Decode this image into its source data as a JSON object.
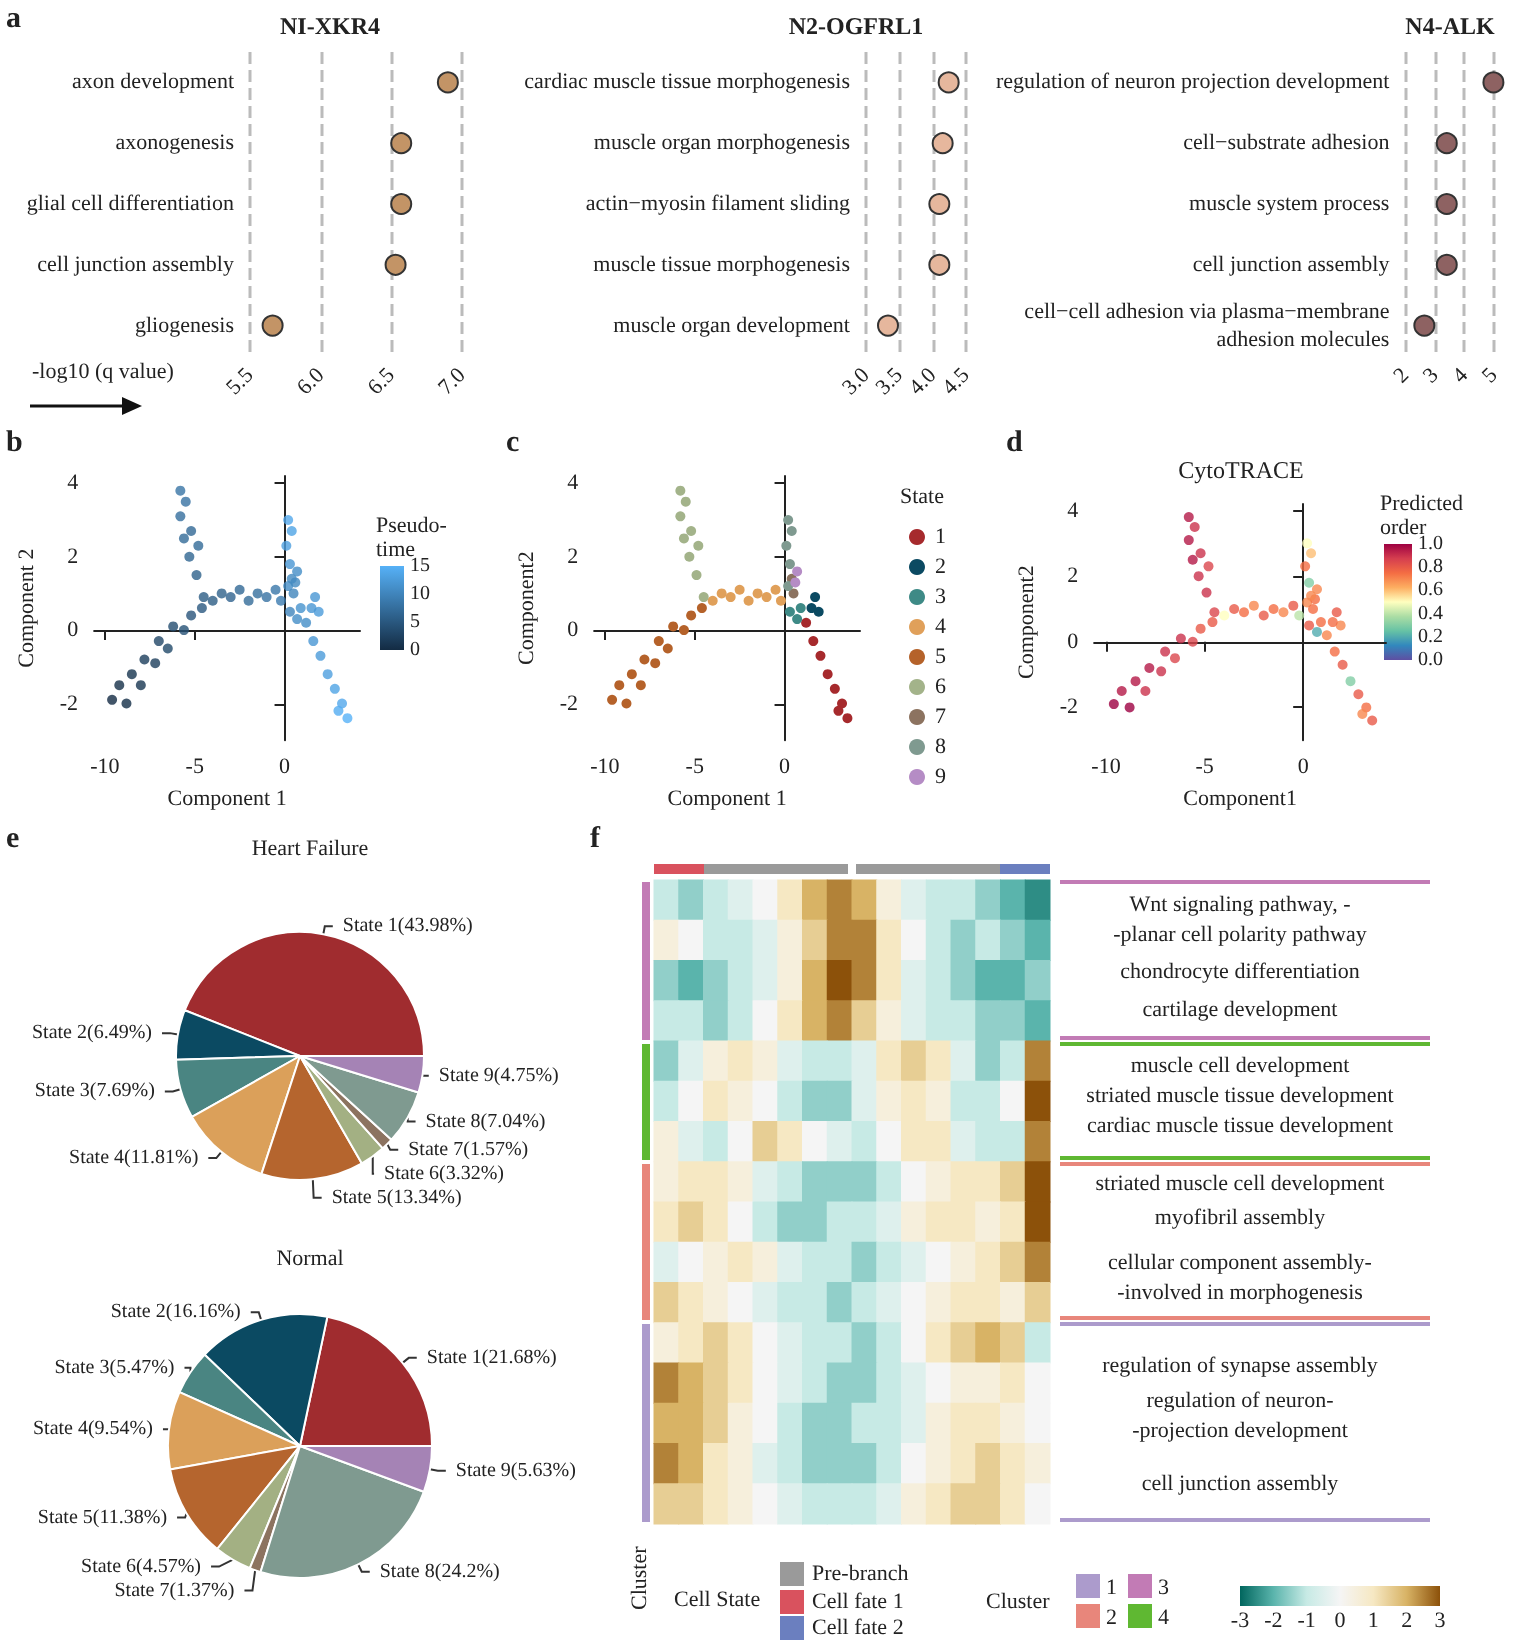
{
  "chart_data": [
    {
      "type": "scatter",
      "orientation": "horizontal",
      "title": "NI-XKR4",
      "xlabel": "-log10 (q value)",
      "annotations": [
        "a"
      ],
      "categories": [
        "axon development",
        "axonogenesis",
        "glial cell differentiation",
        "cell junction assembly",
        "gliogenesis"
      ],
      "values": [
        6.9,
        6.57,
        6.57,
        6.53,
        5.66
      ],
      "color": "#c39466",
      "xlim": [
        5.5,
        7
      ],
      "xticks": [
        {
          "value": 5.5,
          "label": "5.5"
        },
        {
          "value": 6,
          "label": "6.0"
        },
        {
          "value": 6.5,
          "label": "6.5"
        },
        {
          "value": 7,
          "label": "7.0"
        }
      ],
      "grid": "x",
      "marker": "circle"
    },
    {
      "type": "scatter",
      "orientation": "horizontal",
      "title": "N2-OGFRL1",
      "categories": [
        "cardiac muscle tissue morphogenesis",
        "muscle organ morphogenesis",
        "actin−myosin filament sliding",
        "muscle tissue morphogenesis",
        "muscle organ development"
      ],
      "values": [
        4.24,
        4.15,
        4.1,
        4.1,
        3.33
      ],
      "color": "#e6b79d",
      "xlim": [
        3,
        4.5
      ],
      "xticks": [
        {
          "value": 3,
          "label": "3.0"
        },
        {
          "value": 3.5,
          "label": "3.5"
        },
        {
          "value": 4,
          "label": "4.0"
        },
        {
          "value": 4.5,
          "label": "4.5"
        }
      ],
      "grid": "x",
      "marker": "circle"
    },
    {
      "type": "scatter",
      "orientation": "horizontal",
      "title": "N4-ALK",
      "categories": [
        "regulation of neuron projection development",
        "cell−substrate adhesion",
        "muscle system process",
        "cell junction assembly",
        "cell−cell adhesion via plasma−membrane\nadhesion molecules"
      ],
      "values": [
        4.98,
        3.4,
        3.4,
        3.4,
        2.64
      ],
      "color": "#8e6262",
      "xlim": [
        2,
        5
      ],
      "xticks": [
        2,
        3,
        4,
        5
      ],
      "grid": "x",
      "marker": "circle"
    },
    {
      "type": "scatter",
      "annotations": [
        "b"
      ],
      "xlabel": "Component 1",
      "ylabel": "Component 2",
      "clabel": "Pseudo-\ntime",
      "clim": [
        0,
        15
      ],
      "cticks": [
        0,
        5,
        10,
        15
      ],
      "marker": "circle",
      "xlim": [
        -10.6,
        4.2
      ],
      "ylim": [
        -3,
        4.2
      ],
      "xticks": [
        -10,
        -5,
        0
      ],
      "yticks": [
        -2,
        0,
        2,
        4
      ],
      "x": [
        -9.6,
        -9.2,
        -8.8,
        -8.5,
        -8.0,
        -7.8,
        -7.2,
        -7.0,
        -6.5,
        -6.2,
        -5.6,
        -5.2,
        -4.6,
        -4.5,
        -4.9,
        -5.3,
        -5.6,
        -5.2,
        -5.8,
        -5.5,
        -5.8,
        -4.8,
        -4.0,
        -3.5,
        -3.0,
        -2.5,
        -2.0,
        -1.5,
        -1.0,
        -0.5,
        -0.2,
        0.2,
        0.3,
        0.1,
        0.4,
        0.2,
        0.7,
        0.6,
        0.5,
        0.4,
        0.3,
        0.7,
        0.9,
        1.7,
        1.9,
        1.5,
        1.2,
        1.6,
        2.0,
        2.4,
        2.8,
        3.2,
        3.5,
        3.0
      ],
      "values": [
        -1.9,
        -1.5,
        -2.0,
        -1.2,
        -1.5,
        -0.8,
        -0.9,
        -0.3,
        -0.5,
        0.1,
        0.0,
        0.4,
        0.6,
        0.9,
        1.5,
        2.0,
        2.5,
        2.7,
        3.1,
        3.5,
        3.8,
        2.3,
        0.8,
        1.0,
        0.9,
        1.1,
        0.8,
        1.0,
        0.9,
        1.1,
        0.8,
        1.2,
        1.8,
        2.3,
        2.7,
        3.0,
        1.6,
        1.3,
        1.0,
        1.4,
        0.5,
        0.3,
        0.6,
        0.9,
        0.5,
        0.6,
        0.2,
        -0.3,
        -0.7,
        -1.2,
        -1.6,
        -2.0,
        -2.4,
        -2.2
      ],
      "cvalues": [
        0,
        0.5,
        0.3,
        1,
        1.2,
        2,
        2.2,
        3,
        3.2,
        3.8,
        4.2,
        4.6,
        5,
        5.5,
        6,
        6.5,
        7,
        6.8,
        7.5,
        8,
        8.2,
        7,
        5.5,
        6,
        6.3,
        6.8,
        7.2,
        7.6,
        8,
        8.5,
        9,
        11,
        12,
        13,
        13.5,
        14,
        11,
        10.5,
        10,
        10.5,
        10,
        11,
        11.5,
        12,
        12.5,
        12,
        11,
        12,
        12.5,
        13,
        13.5,
        14,
        15,
        14.5
      ]
    },
    {
      "type": "scatter",
      "annotations": [
        "c"
      ],
      "xlabel": "Component 1",
      "ylabel": "Component2",
      "legend_title": "State",
      "legend": "right",
      "marker": "circle",
      "xlim": [
        -10.6,
        4.2
      ],
      "ylim": [
        -3,
        4.2
      ],
      "xticks": [
        -10,
        -5,
        0
      ],
      "yticks": [
        -2,
        0,
        2,
        4
      ],
      "series": [
        {
          "name": "1",
          "color": "#a62a2d",
          "x": [
            1.2,
            1.6,
            2.0,
            2.4,
            2.8,
            3.2,
            3.5,
            3.0
          ],
          "values": [
            0.2,
            -0.3,
            -0.7,
            -1.2,
            -1.6,
            -2.0,
            -2.4,
            -2.2
          ]
        },
        {
          "name": "2",
          "color": "#0b4a62",
          "x": [
            1.7,
            1.9,
            1.5
          ],
          "values": [
            0.9,
            0.5,
            0.6
          ]
        },
        {
          "name": "3",
          "color": "#3e8a86",
          "x": [
            0.3,
            0.7,
            0.9
          ],
          "values": [
            0.5,
            0.3,
            0.6
          ]
        },
        {
          "name": "4",
          "color": "#e0a05a",
          "x": [
            -4.0,
            -3.5,
            -3.0,
            -2.5,
            -2.0,
            -1.5,
            -1.0,
            -0.5,
            -0.2
          ],
          "values": [
            0.8,
            1.0,
            0.9,
            1.1,
            0.8,
            1.0,
            0.9,
            1.1,
            0.8
          ]
        },
        {
          "name": "5",
          "color": "#b5622a",
          "x": [
            -9.6,
            -9.2,
            -8.8,
            -8.5,
            -8.0,
            -7.8,
            -7.2,
            -7.0,
            -6.5,
            -6.2,
            -5.6,
            -5.2,
            -4.6
          ],
          "values": [
            -1.9,
            -1.5,
            -2.0,
            -1.2,
            -1.5,
            -0.8,
            -0.9,
            -0.3,
            -0.5,
            0.1,
            0.0,
            0.4,
            0.6
          ]
        },
        {
          "name": "6",
          "color": "#a3b38a",
          "x": [
            -4.5,
            -4.9,
            -5.3,
            -5.6,
            -5.2,
            -5.8,
            -5.5,
            -5.8,
            -4.8
          ],
          "values": [
            0.9,
            1.5,
            2.0,
            2.5,
            2.7,
            3.1,
            3.5,
            3.8,
            2.3
          ]
        },
        {
          "name": "7",
          "color": "#8c7360",
          "x": [
            0.5,
            0.4
          ],
          "values": [
            1.0,
            1.4
          ]
        },
        {
          "name": "8",
          "color": "#7f9a90",
          "x": [
            0.2,
            0.3,
            0.1,
            0.4,
            0.2
          ],
          "values": [
            1.2,
            1.8,
            2.3,
            2.7,
            3.0
          ]
        },
        {
          "name": "9",
          "color": "#b58cc5",
          "x": [
            0.7,
            0.6
          ],
          "values": [
            1.6,
            1.3
          ]
        }
      ]
    },
    {
      "type": "scatter",
      "annotations": [
        "d"
      ],
      "title": "CytoTRACE",
      "xlabel": "Component1",
      "ylabel": "Component2",
      "clabel": "Predicted\norder",
      "clim": [
        0,
        1
      ],
      "cticks": [
        {
          "value": 0,
          "label": "0.0"
        },
        {
          "value": 0.2,
          "label": "0.2"
        },
        {
          "value": 0.4,
          "label": "0.4"
        },
        {
          "value": 0.6,
          "label": "0.6"
        },
        {
          "value": 0.8,
          "label": "0.8"
        },
        {
          "value": 1,
          "label": "1.0"
        }
      ],
      "marker": "circle",
      "xlim": [
        -10.6,
        4.2
      ],
      "ylim": [
        -3,
        4.2
      ],
      "xticks": [
        -10,
        -5,
        0
      ],
      "yticks": [
        -2,
        0,
        2,
        4
      ],
      "x": [
        -9.6,
        -9.2,
        -8.8,
        -8.5,
        -8.0,
        -7.8,
        -7.2,
        -7.0,
        -6.5,
        -6.2,
        -5.6,
        -5.2,
        -4.6,
        -4.5,
        -4.9,
        -5.3,
        -5.6,
        -5.2,
        -5.8,
        -5.5,
        -5.8,
        -4.8,
        -4.0,
        -3.5,
        -3.0,
        -2.5,
        -2.0,
        -1.5,
        -1.0,
        -0.5,
        -0.2,
        0.2,
        0.3,
        0.1,
        0.4,
        0.2,
        0.7,
        0.6,
        0.5,
        0.4,
        0.3,
        0.7,
        0.9,
        1.7,
        1.9,
        1.5,
        1.2,
        1.6,
        2.0,
        2.4,
        2.8,
        3.2,
        3.5,
        3.0
      ],
      "values": [
        -1.9,
        -1.5,
        -2.0,
        -1.2,
        -1.5,
        -0.8,
        -0.9,
        -0.3,
        -0.5,
        0.1,
        0.0,
        0.4,
        0.6,
        0.9,
        1.5,
        2.0,
        2.5,
        2.7,
        3.1,
        3.5,
        3.8,
        2.3,
        0.8,
        1.0,
        0.9,
        1.1,
        0.8,
        1.0,
        0.9,
        1.1,
        0.8,
        1.2,
        1.8,
        2.3,
        2.7,
        3.0,
        1.6,
        1.3,
        1.0,
        1.4,
        0.5,
        0.3,
        0.6,
        0.9,
        0.5,
        0.6,
        0.2,
        -0.3,
        -0.7,
        -1.2,
        -1.6,
        -2.0,
        -2.4,
        -2.2
      ],
      "cvalues": [
        1,
        0.95,
        1,
        0.95,
        0.9,
        0.95,
        0.9,
        0.9,
        0.85,
        0.9,
        0.85,
        0.8,
        0.8,
        0.85,
        0.9,
        0.9,
        0.95,
        0.9,
        0.95,
        0.9,
        0.95,
        0.85,
        0.5,
        0.8,
        0.75,
        0.7,
        0.8,
        0.75,
        0.7,
        0.8,
        0.4,
        0.7,
        0.3,
        0.75,
        0.6,
        0.5,
        0.7,
        0.75,
        0.75,
        0.7,
        0.8,
        0.2,
        0.75,
        0.8,
        0.7,
        0.75,
        0.7,
        0.75,
        0.8,
        0.3,
        0.8,
        0.75,
        0.8,
        0.7
      ]
    },
    {
      "type": "pie",
      "title": "Heart Failure",
      "annotations": [
        "e"
      ],
      "categories": [
        "State 1(43.98%)",
        "State 2(6.49%)",
        "State 3(7.69%)",
        "State 4(11.81%)",
        "State 5(13.34%)",
        "State 6(3.32%)",
        "State 7(1.57%)",
        "State 8(7.04%)",
        "State 9(4.75%)"
      ],
      "values": [
        43.98,
        6.49,
        7.69,
        11.81,
        13.34,
        3.32,
        1.57,
        7.04,
        4.75
      ],
      "colors": [
        "#a02c2f",
        "#0b4a62",
        "#4a8582",
        "#dba05a",
        "#b5652e",
        "#a3b083",
        "#8c7360",
        "#7f9a90",
        "#a583b5"
      ]
    },
    {
      "type": "pie",
      "title": "Normal",
      "categories": [
        "State 1(21.68%)",
        "State 2(16.16%)",
        "State 3(5.47%)",
        "State 4(9.54%)",
        "State 5(11.38%)",
        "State 6(4.57%)",
        "State 7(1.37%)",
        "State 8(24.2%)",
        "State 9(5.63%)"
      ],
      "values": [
        21.68,
        16.16,
        5.47,
        9.54,
        11.38,
        4.57,
        1.37,
        24.2,
        5.63
      ],
      "colors": [
        "#a02c2f",
        "#0b4a62",
        "#4a8582",
        "#dba05a",
        "#b5652e",
        "#a3b083",
        "#8c7360",
        "#7f9a90",
        "#a583b5"
      ]
    },
    {
      "type": "heatmap",
      "ylabel": "Cluster",
      "clim": [
        -3,
        3
      ],
      "cticks": [
        -3,
        -2,
        -1,
        0,
        1,
        2,
        3
      ],
      "annotations": [
        "f",
        "Wnt signaling pathway, -\n-planar cell polarity pathway",
        "chondrocyte differentiation",
        "cartilage development",
        "muscle cell development",
        "striated muscle tissue development",
        "cardiac muscle tissue development",
        "striated muscle cell development",
        "myofibril assembly",
        "cellular component assembly-\n-involved in morphogenesis",
        "regulation of synapse assembly",
        "regulation of neuron-\n-projection development",
        "cell junction assembly",
        "Cell State",
        "Pre-branch",
        "Cell fate 1",
        "Cell fate 2",
        "Cluster",
        "1",
        "2",
        "3",
        "4"
      ],
      "categories": [
        null,
        null,
        null,
        null,
        null,
        null,
        null,
        null,
        null,
        null,
        null,
        null,
        null,
        null,
        null,
        null
      ],
      "y_categories": [
        null,
        null,
        null,
        null,
        null,
        null,
        null,
        null,
        null,
        null,
        null,
        null,
        null,
        null,
        null,
        null
      ],
      "cells": [
        [
          -1,
          -1.5,
          -1,
          -0.5,
          0,
          1,
          2,
          2.5,
          2,
          0.5,
          -0.5,
          -1,
          -1,
          -1.5,
          -2,
          -2.5
        ],
        [
          0.5,
          0,
          -1,
          -1,
          -0.5,
          0.5,
          1.5,
          2.5,
          2.5,
          1,
          0,
          -1,
          -1.5,
          -1,
          -1.5,
          -2
        ],
        [
          -1.5,
          -2,
          -1.5,
          -1,
          -0.5,
          0.5,
          2,
          3,
          2.5,
          1,
          -0.5,
          -1,
          -1.5,
          -2,
          -2,
          -1.5
        ],
        [
          -1,
          -1,
          -1.5,
          -1,
          0,
          1,
          2,
          2.5,
          1.5,
          0.5,
          -0.5,
          -1,
          -1,
          -1.5,
          -1.5,
          -2
        ],
        [
          -1.5,
          -0.5,
          0.5,
          1,
          0.5,
          -0.5,
          -1,
          -1,
          -0.5,
          1,
          1.5,
          1,
          -0.5,
          -1.5,
          -1,
          2.5
        ],
        [
          -1,
          0,
          1,
          0.5,
          0,
          -1,
          -1.5,
          -1.5,
          -0.5,
          0.5,
          1,
          0.5,
          -1,
          -1,
          0,
          3
        ],
        [
          0.5,
          -0.5,
          -1,
          0,
          1.5,
          1,
          0,
          -0.5,
          -1,
          0,
          1,
          1,
          -0.5,
          -1,
          -1,
          2.5
        ],
        [
          0.5,
          1,
          1,
          0.5,
          -0.5,
          -1,
          -1.5,
          -1.5,
          -1.5,
          -1,
          0,
          0.5,
          1,
          1,
          1.5,
          3
        ],
        [
          1,
          1.5,
          1,
          0,
          -1,
          -1.5,
          -1.5,
          -1,
          -1,
          -0.5,
          0.5,
          1,
          1,
          0.5,
          1,
          3
        ],
        [
          -0.5,
          0,
          0.5,
          1,
          0.5,
          -0.5,
          -1,
          -1,
          -1.5,
          -1,
          -0.5,
          0,
          0.5,
          1,
          1.5,
          2.5
        ],
        [
          1.5,
          1,
          0.5,
          0,
          -0.5,
          -1,
          -1,
          -1.5,
          -1,
          -0.5,
          0,
          0.5,
          1,
          1,
          0.5,
          1.5
        ],
        [
          0.5,
          1,
          1.5,
          1,
          0,
          -0.5,
          -1,
          -1,
          -1.5,
          -1,
          0,
          1,
          1.5,
          2,
          1.5,
          -1
        ],
        [
          2.5,
          2,
          1.5,
          1,
          0,
          -0.5,
          -1,
          -1.5,
          -1.5,
          -1,
          -0.5,
          0,
          0.5,
          0.5,
          1,
          0
        ],
        [
          2,
          2,
          1.5,
          0.5,
          0,
          -1,
          -1.5,
          -1.5,
          -1,
          -1,
          -0.5,
          0.5,
          1,
          1,
          0.5,
          0
        ],
        [
          2.5,
          2,
          1,
          0.5,
          -0.5,
          -1,
          -1.5,
          -1.5,
          -1.5,
          -1,
          0,
          0.5,
          1,
          1.5,
          1,
          0.5
        ],
        [
          1.5,
          1.5,
          1,
          0.5,
          0,
          -0.5,
          -1,
          -1,
          -1,
          -0.5,
          0.5,
          1,
          1.5,
          1.5,
          1,
          0
        ]
      ]
    }
  ]
}
